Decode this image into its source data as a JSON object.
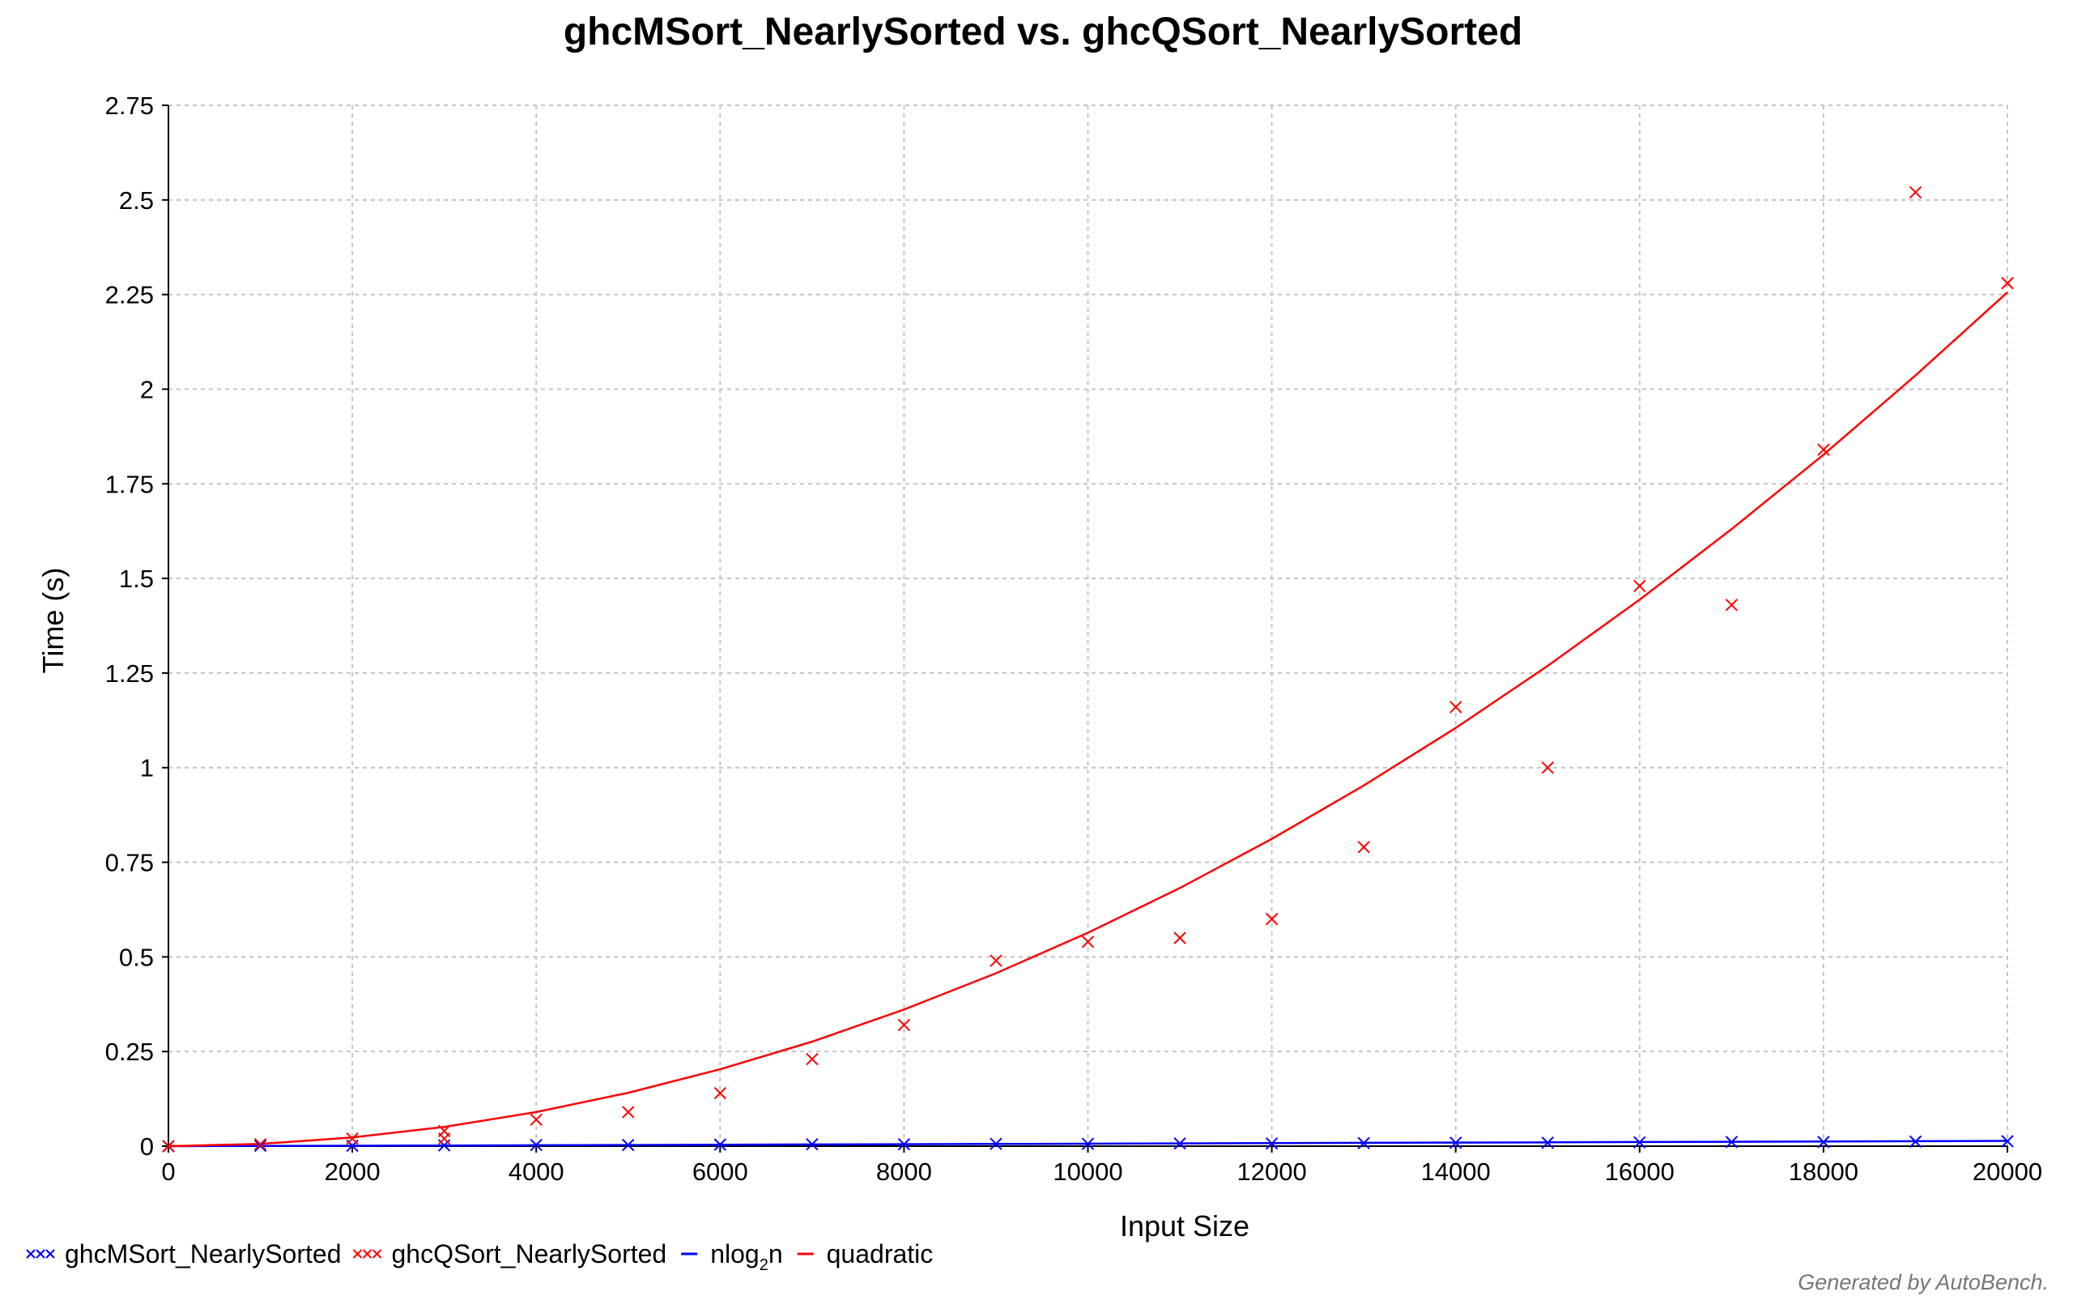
{
  "chart_data": {
    "type": "scatter",
    "title": "ghcMSort_NearlySorted vs. ghcQSort_NearlySorted",
    "xlabel": "Input Size",
    "ylabel": "Time (s)",
    "xlim": [
      0,
      20000
    ],
    "ylim": [
      0,
      2.75
    ],
    "x_ticks": [
      0,
      2000,
      4000,
      6000,
      8000,
      10000,
      12000,
      14000,
      16000,
      18000,
      20000
    ],
    "y_ticks": [
      0,
      0.25,
      0.5,
      0.75,
      1,
      1.25,
      1.5,
      1.75,
      2,
      2.25,
      2.5,
      2.75
    ],
    "y_tick_labels": [
      "0",
      "0.25",
      "0.5",
      "0.75",
      "1",
      "1.25",
      "1.5",
      "1.75",
      "2",
      "2.25",
      "2.5",
      "2.75"
    ],
    "grid": true,
    "legend_position": "bottom-left",
    "series": [
      {
        "name": "ghcMSort_NearlySorted",
        "kind": "scatter",
        "marker": "x",
        "color": "#0000ff",
        "x": [
          0,
          1000,
          2000,
          3000,
          4000,
          5000,
          6000,
          7000,
          8000,
          9000,
          10000,
          11000,
          12000,
          13000,
          14000,
          15000,
          16000,
          17000,
          18000,
          19000,
          20000
        ],
        "y": [
          0.0,
          0.001,
          0.001,
          0.002,
          0.003,
          0.003,
          0.004,
          0.005,
          0.005,
          0.006,
          0.006,
          0.007,
          0.007,
          0.008,
          0.009,
          0.009,
          0.01,
          0.011,
          0.011,
          0.012,
          0.013
        ]
      },
      {
        "name": "ghcQSort_NearlySorted",
        "kind": "scatter",
        "marker": "x",
        "color": "#ff0000",
        "x": [
          0,
          1000,
          2000,
          3000,
          3000,
          4000,
          5000,
          6000,
          7000,
          8000,
          9000,
          10000,
          11000,
          12000,
          13000,
          14000,
          15000,
          16000,
          17000,
          18000,
          19000,
          20000
        ],
        "y": [
          0.0,
          0.005,
          0.02,
          0.02,
          0.04,
          0.07,
          0.09,
          0.14,
          0.23,
          0.32,
          0.49,
          0.54,
          0.55,
          0.6,
          0.79,
          1.16,
          1.0,
          1.48,
          1.43,
          1.84,
          2.52,
          2.28
        ]
      },
      {
        "name": "nlog₂n",
        "legend_label_base": "nlog",
        "legend_label_sub": "2",
        "legend_label_tail": "n",
        "kind": "line",
        "color": "#0000ff",
        "x": [
          0,
          1000,
          2000,
          3000,
          4000,
          5000,
          6000,
          7000,
          8000,
          9000,
          10000,
          11000,
          12000,
          13000,
          14000,
          15000,
          16000,
          17000,
          18000,
          19000,
          20000
        ],
        "y": [
          0.0,
          0.0005,
          0.0011,
          0.0017,
          0.0024,
          0.003,
          0.0037,
          0.0044,
          0.0051,
          0.0058,
          0.0065,
          0.0072,
          0.0079,
          0.0087,
          0.0094,
          0.0101,
          0.0109,
          0.0116,
          0.0124,
          0.0131,
          0.0139
        ]
      },
      {
        "name": "quadratic",
        "kind": "line",
        "color": "#ff0000",
        "x": [
          0,
          1000,
          2000,
          3000,
          4000,
          5000,
          6000,
          7000,
          8000,
          9000,
          10000,
          11000,
          12000,
          13000,
          14000,
          15000,
          16000,
          17000,
          18000,
          19000,
          20000
        ],
        "y": [
          0.0,
          0.006,
          0.023,
          0.051,
          0.09,
          0.141,
          0.203,
          0.276,
          0.361,
          0.457,
          0.564,
          0.682,
          0.812,
          0.953,
          1.105,
          1.269,
          1.444,
          1.63,
          1.827,
          2.036,
          2.256
        ]
      }
    ],
    "footer": "Generated by AutoBench."
  }
}
